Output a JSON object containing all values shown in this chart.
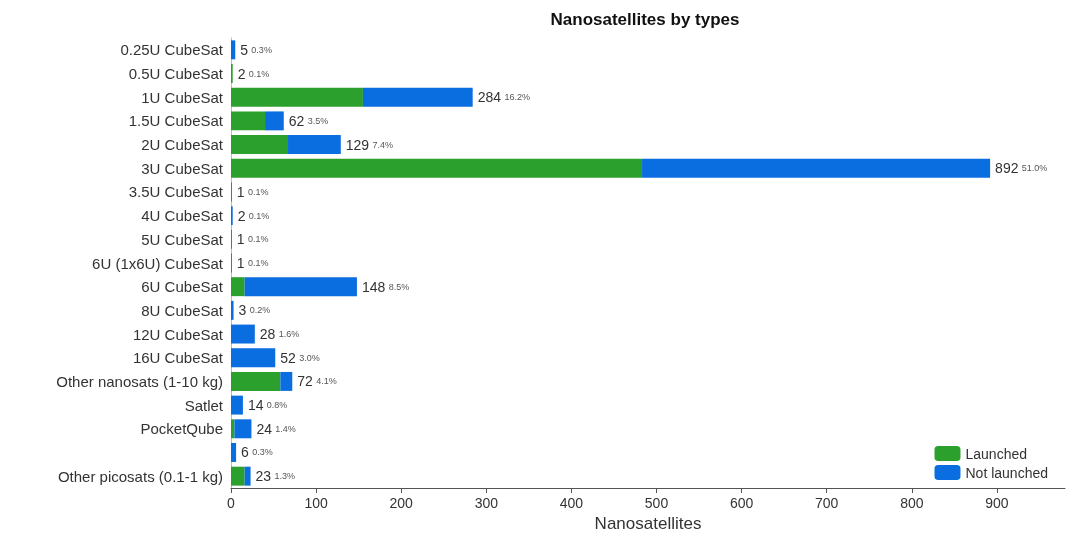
{
  "chart_data": {
    "type": "bar",
    "orientation": "horizontal",
    "stacked": true,
    "title": "Nanosatellites by types",
    "xlabel": "Nanosatellites",
    "categories": [
      "0.25U CubeSat",
      "0.5U CubeSat",
      "1U CubeSat",
      "1.5U CubeSat",
      "2U CubeSat",
      "3U CubeSat",
      "3.5U CubeSat",
      "4U CubeSat",
      "5U CubeSat",
      "6U (1x6U) CubeSat",
      "6U CubeSat",
      "8U CubeSat",
      "12U CubeSat",
      "16U CubeSat",
      "Other nanosats (1-10 kg)",
      "Satlet",
      "PocketQube",
      null,
      "Other picosats (0.1-1 kg)"
    ],
    "series": [
      {
        "name": "Launched",
        "color": "#2ca02c",
        "values": [
          0,
          2,
          155,
          40,
          67,
          483,
          0,
          0,
          0,
          0,
          16,
          0,
          0,
          0,
          58,
          0,
          4,
          0,
          16
        ]
      },
      {
        "name": "Not launched",
        "color": "#0a6ee0",
        "values": [
          5,
          0,
          129,
          22,
          62,
          409,
          1,
          2,
          1,
          1,
          132,
          3,
          28,
          52,
          14,
          14,
          20,
          6,
          7
        ]
      }
    ],
    "totals": [
      "5 0.3%",
      "2 0.1%",
      "284 16.2%",
      "62 3.5%",
      "129 7.4%",
      "892 51.0%",
      "1 0.1%",
      "2 0.1%",
      "1 0.1%",
      "1 0.1%",
      "148 8.5%",
      "3 0.2%",
      "28 1.6%",
      "52 3.0%",
      "72 4.1%",
      "14 0.8%",
      "24 1.4%",
      "6 0.3%",
      "23 1.3%"
    ],
    "xlim": [
      0,
      980
    ],
    "xticks": [
      0,
      100,
      200,
      300,
      400,
      500,
      600,
      700,
      800,
      900
    ],
    "grid": false,
    "legend": "bottom right"
  }
}
